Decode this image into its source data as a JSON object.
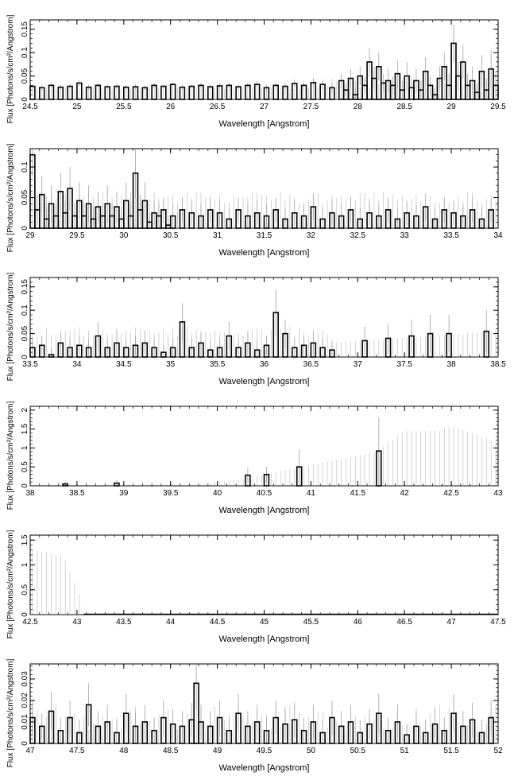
{
  "chart_data": [
    {
      "type": "line",
      "xlabel": "Wavelength [Angstrom]",
      "ylabel": "Flux [Photons/s/cm²/Angstrom]",
      "xlim": [
        24.5,
        29.5
      ],
      "ylim": [
        0,
        0.17
      ],
      "xticks": [
        "24.5",
        "25",
        "25.5",
        "26",
        "26.5",
        "27",
        "27.5",
        "28",
        "28.5",
        "29",
        "29.5"
      ],
      "yticks": [
        "0",
        "0.05",
        "0.1",
        "0.15"
      ],
      "binwidth": 0.05,
      "series": [
        {
          "x": [
            24.5,
            24.6,
            24.7,
            24.8,
            24.9,
            25.0,
            25.1,
            25.2,
            25.3,
            25.4,
            25.5,
            25.6,
            25.7,
            25.8,
            25.9,
            26.0,
            26.1,
            26.2,
            26.3,
            26.4,
            26.5,
            26.6,
            26.7,
            26.8,
            26.9,
            27.0,
            27.1,
            27.2,
            27.3,
            27.4,
            27.5,
            27.6,
            27.7,
            27.8,
            27.85,
            27.9,
            27.95,
            28.0,
            28.05,
            28.1,
            28.15,
            28.2,
            28.25,
            28.3,
            28.35,
            28.4,
            28.45,
            28.5,
            28.55,
            28.6,
            28.65,
            28.7,
            28.75,
            28.8,
            28.85,
            28.9,
            28.95,
            29.0,
            29.05,
            29.1,
            29.15,
            29.2,
            29.25,
            29.3,
            29.35,
            29.4,
            29.45
          ],
          "y": [
            0.028,
            0.025,
            0.03,
            0.026,
            0.028,
            0.035,
            0.026,
            0.03,
            0.027,
            0.028,
            0.026,
            0.027,
            0.025,
            0.03,
            0.028,
            0.032,
            0.026,
            0.028,
            0.03,
            0.027,
            0.029,
            0.03,
            0.027,
            0.03,
            0.032,
            0.025,
            0.03,
            0.028,
            0.034,
            0.03,
            0.036,
            0.032,
            0.025,
            0.04,
            0.02,
            0.045,
            0.01,
            0.05,
            0.03,
            0.08,
            0.045,
            0.07,
            0.035,
            0.04,
            0.03,
            0.055,
            0.02,
            0.05,
            0.025,
            0.04,
            0.02,
            0.06,
            0.03,
            0.01,
            0.045,
            0.07,
            0.03,
            0.12,
            0.05,
            0.08,
            0.03,
            0.04,
            0.015,
            0.06,
            0.02,
            0.065,
            0.03
          ],
          "err": [
            0.005,
            0.005,
            0.005,
            0.005,
            0.005,
            0.006,
            0.005,
            0.005,
            0.005,
            0.005,
            0.005,
            0.005,
            0.005,
            0.006,
            0.005,
            0.006,
            0.005,
            0.005,
            0.006,
            0.005,
            0.006,
            0.006,
            0.006,
            0.006,
            0.007,
            0.006,
            0.007,
            0.007,
            0.008,
            0.008,
            0.01,
            0.01,
            0.01,
            0.015,
            0.012,
            0.02,
            0.015,
            0.02,
            0.018,
            0.03,
            0.025,
            0.03,
            0.02,
            0.025,
            0.02,
            0.03,
            0.02,
            0.03,
            0.02,
            0.025,
            0.02,
            0.03,
            0.02,
            0.015,
            0.025,
            0.03,
            0.025,
            0.04,
            0.03,
            0.035,
            0.025,
            0.03,
            0.02,
            0.035,
            0.025,
            0.04,
            0.03
          ]
        }
      ]
    },
    {
      "type": "line",
      "xlabel": "Wavelength [Angstrom]",
      "ylabel": "Flux [Photons/s/cm²/Angstrom]",
      "xlim": [
        29,
        34
      ],
      "ylim": [
        0,
        0.13
      ],
      "xticks": [
        "29",
        "29.5",
        "30",
        "30.5",
        "31",
        "31.5",
        "32",
        "32.5",
        "33",
        "33.5",
        "34"
      ],
      "yticks": [
        "0",
        "0.05",
        "0.1"
      ],
      "binwidth": 0.05,
      "series": [
        {
          "x": [
            29.0,
            29.05,
            29.1,
            29.15,
            29.2,
            29.25,
            29.3,
            29.35,
            29.4,
            29.45,
            29.5,
            29.55,
            29.6,
            29.65,
            29.7,
            29.75,
            29.8,
            29.85,
            29.9,
            29.95,
            30.0,
            30.05,
            30.1,
            30.15,
            30.2,
            30.25,
            30.3,
            30.35,
            30.4,
            30.45,
            30.5,
            30.6,
            30.7,
            30.8,
            30.9,
            31.0,
            31.1,
            31.2,
            31.3,
            31.4,
            31.5,
            31.6,
            31.7,
            31.8,
            31.9,
            32.0,
            32.1,
            32.2,
            32.3,
            32.4,
            32.5,
            32.6,
            32.7,
            32.8,
            32.9,
            33.0,
            33.1,
            33.2,
            33.3,
            33.4,
            33.5,
            33.6,
            33.7,
            33.8,
            33.9
          ],
          "y": [
            0.12,
            0.03,
            0.055,
            0.015,
            0.04,
            0.02,
            0.06,
            0.025,
            0.065,
            0.02,
            0.045,
            0.02,
            0.04,
            0.015,
            0.035,
            0.02,
            0.04,
            0.02,
            0.035,
            0.015,
            0.045,
            0.02,
            0.09,
            0.03,
            0.045,
            0.01,
            0.025,
            0.02,
            0.03,
            0.005,
            0.02,
            0.03,
            0.025,
            0.02,
            0.03,
            0.025,
            0.015,
            0.03,
            0.02,
            0.025,
            0.02,
            0.03,
            0.015,
            0.025,
            0.02,
            0.035,
            0.015,
            0.025,
            0.02,
            0.03,
            0.015,
            0.025,
            0.02,
            0.03,
            0.015,
            0.025,
            0.02,
            0.035,
            0.015,
            0.03,
            0.025,
            0.02,
            0.03,
            0.015,
            0.03
          ],
          "err": [
            0.035,
            0.025,
            0.03,
            0.02,
            0.03,
            0.02,
            0.03,
            0.02,
            0.035,
            0.02,
            0.03,
            0.02,
            0.03,
            0.02,
            0.025,
            0.02,
            0.03,
            0.02,
            0.025,
            0.02,
            0.03,
            0.02,
            0.04,
            0.025,
            0.03,
            0.015,
            0.02,
            0.02,
            0.02,
            0.015,
            0.02,
            0.02,
            0.02,
            0.02,
            0.02,
            0.02,
            0.018,
            0.02,
            0.02,
            0.02,
            0.018,
            0.02,
            0.018,
            0.02,
            0.018,
            0.022,
            0.018,
            0.02,
            0.018,
            0.02,
            0.018,
            0.02,
            0.018,
            0.02,
            0.018,
            0.02,
            0.018,
            0.022,
            0.018,
            0.02,
            0.02,
            0.018,
            0.02,
            0.018,
            0.02
          ]
        }
      ]
    },
    {
      "type": "line",
      "xlabel": "Wavelength [Angstrom]",
      "ylabel": "Flux [Photons/s/cm²/Angstrom]",
      "xlim": [
        33.5,
        38.5
      ],
      "ylim": [
        0,
        0.17
      ],
      "xticks": [
        "33.5",
        "34",
        "34.5",
        "35",
        "35.5",
        "36",
        "36.5",
        "37",
        "37.5",
        "38",
        "38.5"
      ],
      "yticks": [
        "0",
        "0.05",
        "0.1",
        "0.15"
      ],
      "binwidth": 0.05,
      "series": [
        {
          "x": [
            33.5,
            33.6,
            33.7,
            33.8,
            33.9,
            34.0,
            34.1,
            34.2,
            34.3,
            34.4,
            34.5,
            34.6,
            34.7,
            34.8,
            34.9,
            35.0,
            35.1,
            35.2,
            35.3,
            35.4,
            35.5,
            35.6,
            35.7,
            35.8,
            35.9,
            36.0,
            36.1,
            36.2,
            36.3,
            36.4,
            36.5,
            36.6,
            36.7,
            37.05,
            37.3,
            37.55,
            37.75,
            37.95,
            38.35
          ],
          "y": [
            0.02,
            0.025,
            0.005,
            0.03,
            0.02,
            0.025,
            0.02,
            0.045,
            0.02,
            0.03,
            0.02,
            0.025,
            0.03,
            0.02,
            0.01,
            0.02,
            0.075,
            0.02,
            0.03,
            0.015,
            0.02,
            0.045,
            0.02,
            0.03,
            0.015,
            0.025,
            0.095,
            0.05,
            0.02,
            0.025,
            0.03,
            0.02,
            0.015,
            0.035,
            0.04,
            0.045,
            0.05,
            0.05,
            0.055
          ],
          "err": [
            0.02,
            0.02,
            0.015,
            0.025,
            0.02,
            0.02,
            0.02,
            0.03,
            0.02,
            0.025,
            0.02,
            0.02,
            0.025,
            0.02,
            0.015,
            0.02,
            0.04,
            0.02,
            0.025,
            0.02,
            0.02,
            0.03,
            0.02,
            0.025,
            0.02,
            0.02,
            0.05,
            0.03,
            0.02,
            0.02,
            0.025,
            0.02,
            0.02,
            0.03,
            0.03,
            0.035,
            0.04,
            0.04,
            0.045
          ]
        }
      ]
    },
    {
      "type": "line",
      "xlabel": "Wavelength [Angstrom]",
      "ylabel": "Flux [Photons/s/cm²/Angstrom]",
      "xlim": [
        38,
        43
      ],
      "ylim": [
        0,
        2.1
      ],
      "xticks": [
        "38",
        "38.5",
        "39",
        "39.5",
        "40",
        "40.5",
        "41",
        "41.5",
        "42",
        "42.5",
        "43"
      ],
      "yticks": [
        "0",
        "0.5",
        "1",
        "1.5",
        "2"
      ],
      "binwidth": 0.05,
      "series": [
        {
          "x": [
            38.35,
            38.9,
            40.3,
            40.5,
            40.85,
            41.7
          ],
          "y": [
            0.05,
            0.07,
            0.28,
            0.3,
            0.5,
            0.92
          ],
          "err": [
            0.05,
            0.08,
            0.2,
            0.2,
            0.45,
            0.9
          ]
        }
      ]
    },
    {
      "type": "line",
      "xlabel": "Wavelength [Angstrom]",
      "ylabel": "Flux [Photons/s/cm²/Angstrom]",
      "xlim": [
        42.5,
        47.5
      ],
      "ylim": [
        0,
        1.6
      ],
      "xticks": [
        "42.5",
        "43",
        "43.5",
        "44",
        "44.5",
        "45",
        "45.5",
        "46",
        "46.5",
        "47",
        "47.5"
      ],
      "yticks": [
        "0",
        "0.5",
        "1",
        "1.5"
      ],
      "binwidth": 0.05,
      "series": [
        {
          "x": [],
          "y": [],
          "err": []
        }
      ]
    },
    {
      "type": "line",
      "xlabel": "Wavelength [Angstrom]",
      "ylabel": "Flux [Photons/s/cm²/Angstrom]",
      "xlim": [
        47,
        52
      ],
      "ylim": [
        0,
        0.037
      ],
      "xticks": [
        "47",
        "47.5",
        "48",
        "48.5",
        "49",
        "49.5",
        "50",
        "50.5",
        "51",
        "51.5",
        "52"
      ],
      "yticks": [
        "0",
        "0.01",
        "0.02",
        "0.03"
      ],
      "binwidth": 0.05,
      "series": [
        {
          "x": [
            47.0,
            47.1,
            47.2,
            47.3,
            47.4,
            47.5,
            47.6,
            47.7,
            47.8,
            47.9,
            48.0,
            48.1,
            48.2,
            48.3,
            48.4,
            48.5,
            48.6,
            48.7,
            48.75,
            48.8,
            48.9,
            49.0,
            49.1,
            49.2,
            49.3,
            49.4,
            49.5,
            49.6,
            49.7,
            49.8,
            49.9,
            50.0,
            50.1,
            50.2,
            50.3,
            50.4,
            50.5,
            50.6,
            50.7,
            50.8,
            50.9,
            51.0,
            51.1,
            51.2,
            51.3,
            51.4,
            51.5,
            51.6,
            51.7,
            51.8,
            51.9
          ],
          "y": [
            0.012,
            0.008,
            0.015,
            0.006,
            0.012,
            0.005,
            0.018,
            0.008,
            0.01,
            0.005,
            0.014,
            0.008,
            0.01,
            0.006,
            0.012,
            0.009,
            0.008,
            0.011,
            0.028,
            0.01,
            0.008,
            0.012,
            0.006,
            0.014,
            0.008,
            0.01,
            0.006,
            0.012,
            0.009,
            0.011,
            0.006,
            0.01,
            0.005,
            0.012,
            0.008,
            0.01,
            0.005,
            0.009,
            0.014,
            0.006,
            0.01,
            0.004,
            0.008,
            0.005,
            0.009,
            0.006,
            0.014,
            0.008,
            0.011,
            0.005,
            0.012
          ],
          "err": [
            0.008,
            0.006,
            0.009,
            0.006,
            0.008,
            0.006,
            0.01,
            0.007,
            0.008,
            0.006,
            0.009,
            0.007,
            0.008,
            0.006,
            0.008,
            0.007,
            0.007,
            0.008,
            0.012,
            0.008,
            0.007,
            0.008,
            0.006,
            0.009,
            0.007,
            0.008,
            0.006,
            0.008,
            0.007,
            0.008,
            0.006,
            0.008,
            0.006,
            0.008,
            0.007,
            0.008,
            0.006,
            0.007,
            0.009,
            0.006,
            0.008,
            0.005,
            0.007,
            0.006,
            0.007,
            0.006,
            0.009,
            0.007,
            0.008,
            0.006,
            0.008
          ]
        }
      ]
    }
  ]
}
